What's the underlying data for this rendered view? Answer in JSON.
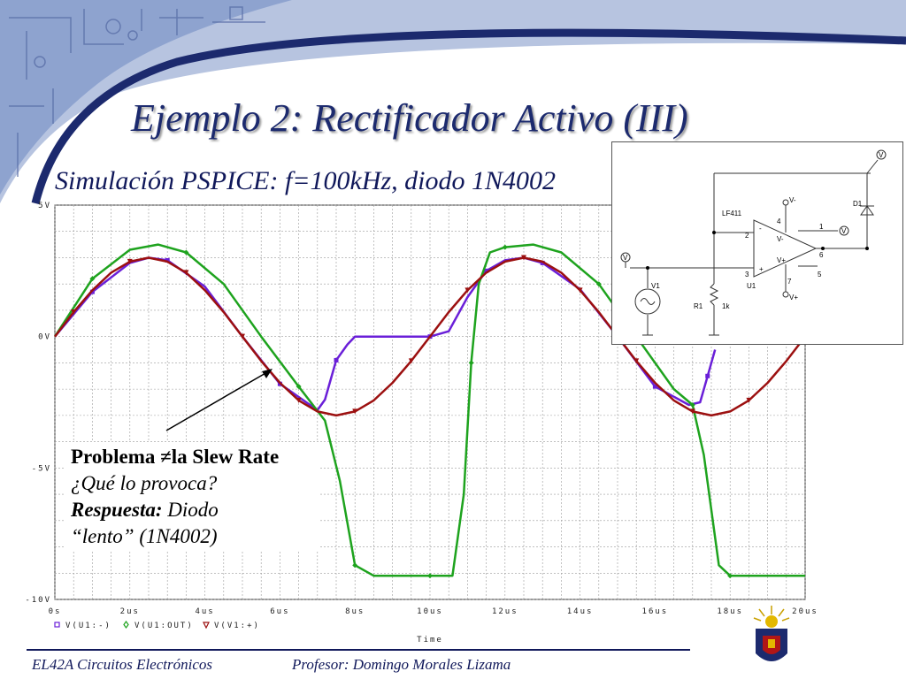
{
  "slide": {
    "title": "Ejemplo 2: Rectificador Activo (III)",
    "subtitle": "Simulación PSPICE: f=100kHz, diodo 1N4002",
    "footer_left": "EL42A Circuitos Electrónicos",
    "footer_right": "Profesor: Domingo Morales Lizama"
  },
  "note": {
    "line1_bold": "Problema ",
    "line1_rest": "la Slew Rate",
    "line2": "¿Qué lo provoca?",
    "line3_bold": "Respuesta:",
    "line3_rest": " Diodo",
    "line4": "“lento” (1N4002)"
  },
  "circuit": {
    "opamp": "LF411",
    "u1": "U1",
    "d1": "D1",
    "v1": "V1",
    "r1": "R1",
    "r1_value": "1k",
    "vminus": "V-",
    "vplus": "V+",
    "pin2": "2",
    "pin3": "3",
    "pin4": "4",
    "pin5": "5",
    "pin6": "6",
    "pin7": "7",
    "pin1": "1",
    "probe": "V"
  },
  "colors": {
    "v_minus": "#6a1fd8",
    "v_out": "#1ea31e",
    "v_plus": "#9c1010",
    "header_blue": "#1c2a6e"
  },
  "chart_data": {
    "type": "line",
    "xlabel": "Time",
    "x_ticks": [
      "0s",
      "2us",
      "4us",
      "6us",
      "8us",
      "10us",
      "12us",
      "14us",
      "16us",
      "18us",
      "20us"
    ],
    "y_ticks": [
      "5V",
      "0V",
      "-5V",
      "-10V"
    ],
    "xlim": [
      0,
      20
    ],
    "ylim": [
      -10,
      5
    ],
    "grid": true,
    "legend_position": "bottom-left",
    "legend": [
      "V(U1:-)",
      "V(U1:OUT)",
      "V(V1:+)"
    ],
    "series": [
      {
        "name": "V(U1:-)",
        "x": [
          0,
          1,
          2,
          2.5,
          3,
          4,
          5,
          6,
          7,
          7.2,
          7.5,
          7.8,
          8,
          10,
          10.5,
          11,
          11.5,
          12,
          12.5,
          13,
          14,
          15,
          16,
          16.9,
          17.2,
          17.4,
          17.6
        ],
        "y": [
          0,
          1.7,
          2.8,
          3.0,
          2.9,
          1.9,
          0.0,
          -1.8,
          -2.8,
          -2.4,
          -0.9,
          -0.3,
          0.0,
          0.0,
          0.2,
          1.5,
          2.5,
          2.9,
          3.0,
          2.8,
          1.8,
          0.0,
          -1.9,
          -2.6,
          -2.5,
          -1.5,
          -0.5
        ]
      },
      {
        "name": "V(U1:OUT)",
        "x": [
          0,
          1,
          2,
          2.75,
          3.5,
          4.5,
          5.5,
          6.5,
          7.2,
          7.6,
          8,
          8.5,
          9,
          10,
          10.6,
          10.9,
          11.1,
          11.3,
          11.6,
          12,
          12.75,
          13.5,
          14.5,
          15.5,
          16.5,
          17,
          17.3,
          17.7,
          18,
          20
        ],
        "y": [
          0,
          2.2,
          3.3,
          3.5,
          3.2,
          2.0,
          0.0,
          -1.9,
          -3.2,
          -5.5,
          -8.7,
          -9.1,
          -9.1,
          -9.1,
          -9.1,
          -6.0,
          -1.0,
          2.0,
          3.2,
          3.4,
          3.5,
          3.2,
          2.0,
          0.0,
          -2.0,
          -2.6,
          -4.5,
          -8.7,
          -9.1,
          -9.1
        ]
      },
      {
        "name": "V(V1:+)",
        "x": [
          0,
          0.5,
          1,
          1.5,
          2,
          2.5,
          3,
          3.5,
          4,
          4.5,
          5,
          5.5,
          6,
          6.5,
          7,
          7.5,
          8,
          8.5,
          9,
          9.5,
          10,
          10.5,
          11,
          11.5,
          12,
          12.5,
          13,
          13.5,
          14,
          14.5,
          15,
          15.5,
          16,
          16.5,
          17,
          17.5,
          18,
          18.5,
          19,
          19.5,
          20
        ],
        "y": [
          0,
          0.93,
          1.76,
          2.43,
          2.85,
          3.0,
          2.85,
          2.43,
          1.76,
          0.93,
          0,
          -0.93,
          -1.76,
          -2.43,
          -2.85,
          -3.0,
          -2.85,
          -2.43,
          -1.76,
          -0.93,
          0,
          0.93,
          1.76,
          2.43,
          2.85,
          3.0,
          2.85,
          2.43,
          1.76,
          0.93,
          0,
          -0.93,
          -1.76,
          -2.43,
          -2.85,
          -3.0,
          -2.85,
          -2.43,
          -1.76,
          -0.93,
          0
        ]
      }
    ]
  }
}
